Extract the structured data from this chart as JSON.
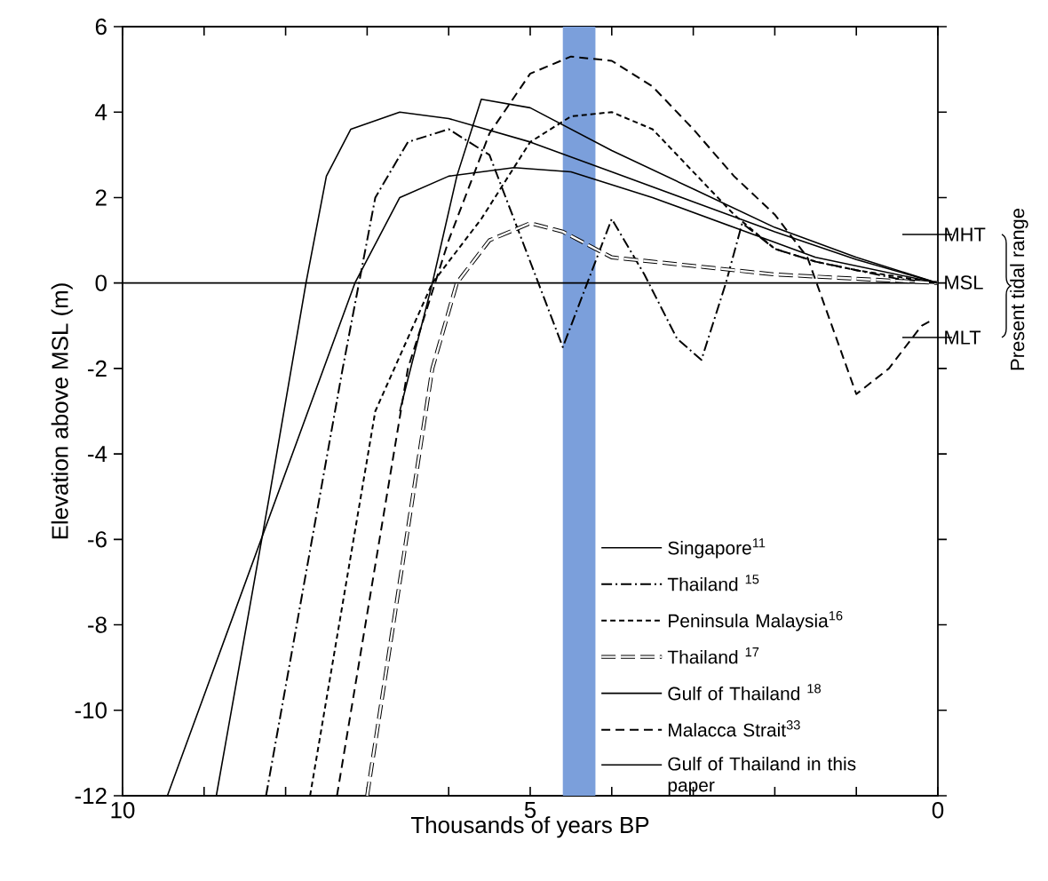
{
  "chart_data": {
    "type": "line",
    "xlabel": "Thousands of years BP",
    "ylabel": "Elevation above MSL (m)",
    "xlim": [
      10,
      0
    ],
    "ylim": [
      -12,
      6
    ],
    "xticks": [
      10,
      {
        "value": 9,
        "label": null
      },
      {
        "value": 8,
        "label": null
      },
      {
        "value": 7,
        "label": null
      },
      {
        "value": 6,
        "label": null
      },
      5,
      {
        "value": 4,
        "label": null
      },
      {
        "value": 3,
        "label": null
      },
      {
        "value": 2,
        "label": null
      },
      {
        "value": 1,
        "label": null
      },
      0
    ],
    "yticks": [
      -12,
      -10,
      -8,
      -6,
      -4,
      -2,
      0,
      2,
      4,
      6
    ],
    "legend": "bottom right",
    "series": [
      {
        "name": "Singapore$^{11}$",
        "color": "#000000",
        "line_style": "solid",
        "x": [
          6.6,
          6.2,
          5.9,
          5.6,
          5,
          4,
          3,
          2,
          1,
          0
        ],
        "values": [
          -3,
          0,
          2.5,
          4.3,
          4.1,
          3.1,
          2.2,
          1.3,
          0.6,
          0
        ]
      },
      {
        "name": "Thailand $^{15}$",
        "color": "#000000",
        "line_style": "dashdot",
        "x": [
          8.24,
          7.3,
          6.9,
          6.5,
          6.0,
          5.5,
          5.2,
          4.9,
          4.6,
          4.3,
          4.0,
          3.6,
          3.2,
          2.9,
          2.6,
          2.4,
          2.0,
          1.5,
          1.0,
          0.5,
          0
        ],
        "values": [
          -12,
          -2,
          2,
          3.3,
          3.6,
          3.0,
          1.5,
          0,
          -1.5,
          0,
          1.5,
          0.2,
          -1.3,
          -1.8,
          0,
          1.4,
          0.8,
          0.5,
          0.3,
          0.1,
          0
        ]
      },
      {
        "name": "Peninsula Malaysia$^{16}$",
        "color": "#000000",
        "line_style": "densely dashed",
        "x": [
          7.7,
          6.9,
          6.2,
          5.6,
          5.0,
          4.5,
          4.0,
          3.5,
          3.0,
          2.5,
          2.0,
          1.5,
          1.0,
          0
        ],
        "values": [
          -12,
          -3,
          0,
          1.5,
          3.3,
          3.9,
          4.0,
          3.6,
          2.6,
          1.6,
          0.8,
          0.5,
          0.3,
          0
        ]
      },
      {
        "name": "Thailand $^{17}$",
        "color": "#000000",
        "line_style": "double dashed",
        "x": [
          7.0,
          6.2,
          5.9,
          5.5,
          5.0,
          4.6,
          4.0,
          3.0,
          2.0,
          0
        ],
        "values": [
          -12,
          -2,
          0,
          1.0,
          1.4,
          1.2,
          0.6,
          0.4,
          0.2,
          0
        ]
      },
      {
        "name": "Gulf of Thailand $^{18}$",
        "color": "#000000",
        "line_style": "solid",
        "x": [
          9.45,
          7.15,
          6.6,
          6.0,
          5.2,
          4.5,
          3.5,
          2.5,
          1.5,
          0
        ],
        "values": [
          -12,
          0,
          2.0,
          2.5,
          2.7,
          2.6,
          2.0,
          1.3,
          0.6,
          0
        ]
      },
      {
        "name": "Malacca Strait$^{33}$",
        "color": "#000000",
        "line_style": "dashed",
        "x": [
          7.37,
          6.5,
          6.0,
          5.5,
          5.0,
          4.5,
          4.0,
          3.5,
          3.0,
          2.5,
          2.0,
          1.6,
          1.3,
          1.0,
          0.6,
          0.2,
          0.1
        ],
        "values": [
          -12,
          -2,
          1,
          3.5,
          4.9,
          5.3,
          5.2,
          4.6,
          3.6,
          2.5,
          1.6,
          0.6,
          -1.0,
          -2.6,
          -2.0,
          -1.0,
          -0.9
        ]
      },
      {
        "name": "Gulf of Thailand in this paper",
        "color": "#000000",
        "line_style": "solid",
        "x": [
          8.85,
          8.2,
          7.75,
          7.5,
          7.2,
          6.6,
          6.0,
          5,
          4,
          3,
          2,
          1,
          0
        ],
        "values": [
          -12,
          -5,
          0,
          2.5,
          3.6,
          4.0,
          3.85,
          3.3,
          2.6,
          1.9,
          1.2,
          0.55,
          0
        ]
      }
    ],
    "ref_lines": [
      {
        "axis": "y",
        "value": 0,
        "color": "#000000"
      }
    ],
    "bands": [
      {
        "axis": "x",
        "from": 4.6,
        "to": 4.2,
        "color": "#7b9fdb"
      }
    ],
    "annotations": [
      "MHT",
      "MSL",
      "MLT",
      "Present tidal range"
    ]
  }
}
